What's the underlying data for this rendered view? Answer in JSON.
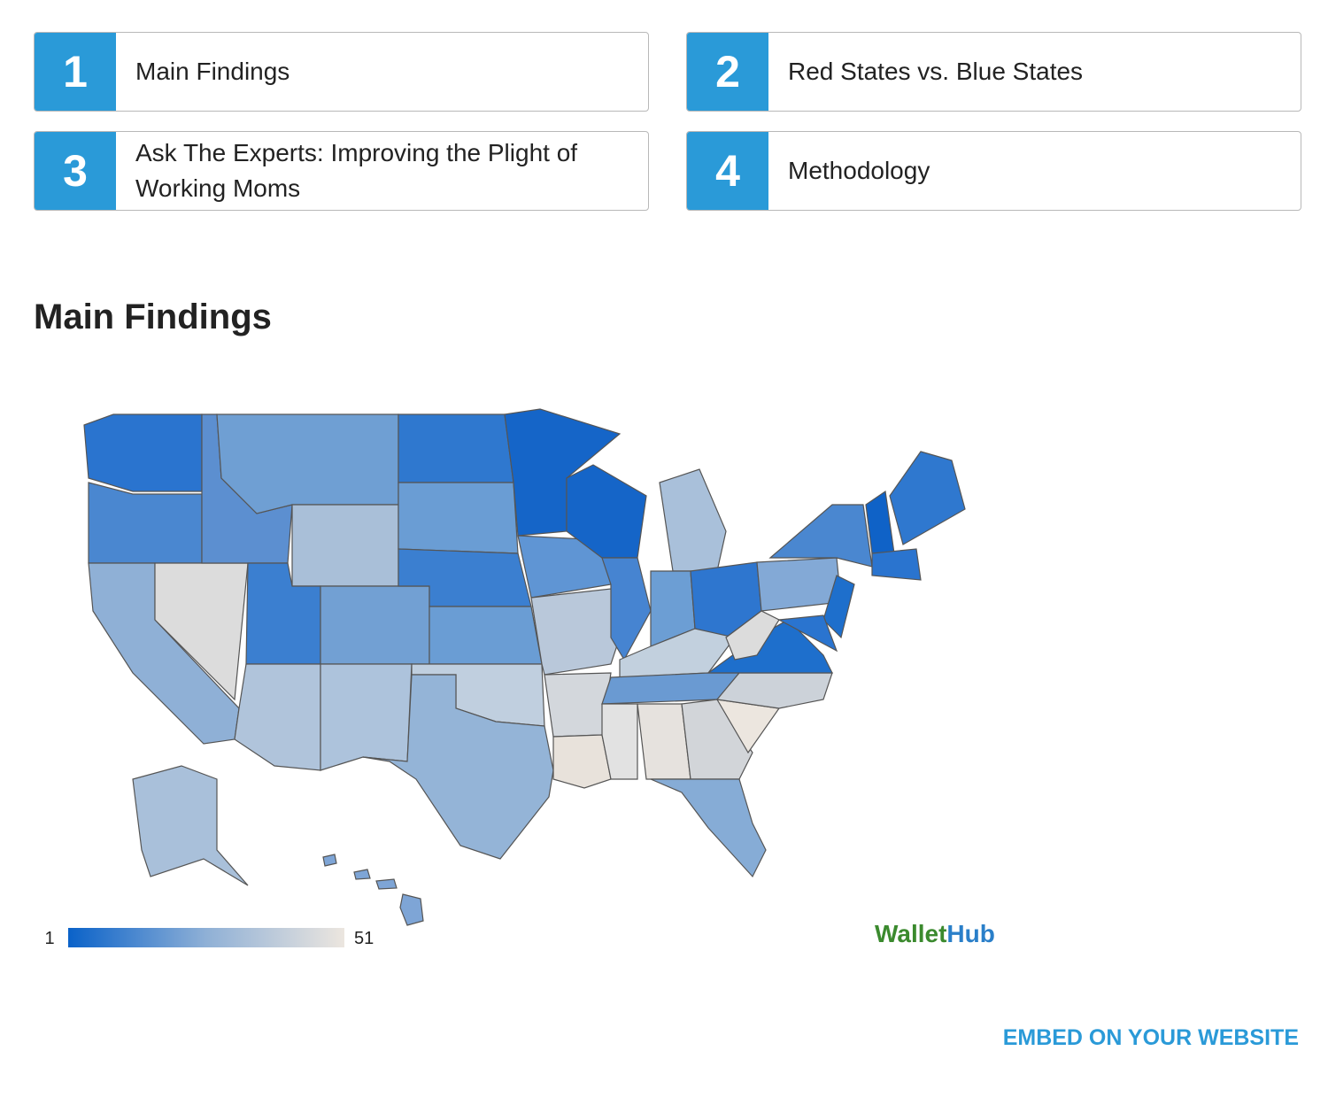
{
  "nav": {
    "items": [
      {
        "number": 1,
        "label": "Main Findings"
      },
      {
        "number": 2,
        "label": "Red States vs. Blue States"
      },
      {
        "number": 3,
        "label": "Ask The Experts: Improving the Plight of Working Moms"
      },
      {
        "number": 4,
        "label": "Methodology"
      }
    ]
  },
  "section_title": "Main Findings",
  "legend": {
    "min": 1,
    "max": 51
  },
  "brand": {
    "first": "Wallet",
    "second": "Hub"
  },
  "embed_link": "EMBED ON YOUR WEBSITE"
}
